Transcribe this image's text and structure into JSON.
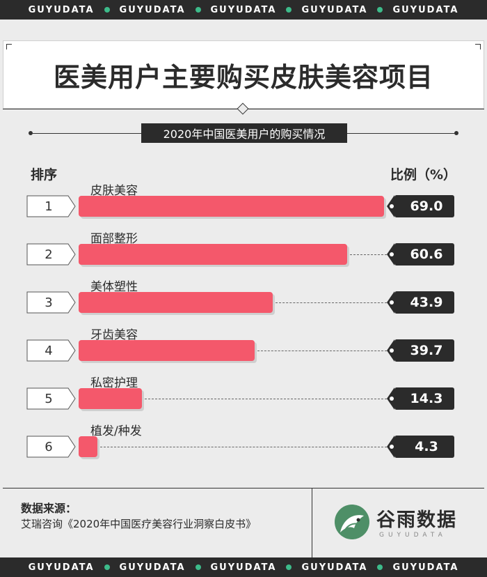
{
  "watermark": {
    "text": "GUYUDATA",
    "dot_color": "#3dbb8a"
  },
  "title": "医美用户主要购买皮肤美容项目",
  "subtitle": "2020年中国医美用户的购买情况",
  "columns": {
    "rank": "排序",
    "percent": "比例（%）"
  },
  "chart_data": {
    "type": "bar",
    "orientation": "horizontal",
    "ranks": [
      "1",
      "2",
      "3",
      "4",
      "5",
      "6"
    ],
    "categories": [
      "皮肤美容",
      "面部整形",
      "美体塑性",
      "牙齿美容",
      "私密护理",
      "植发/种发"
    ],
    "values": [
      69.0,
      60.6,
      43.9,
      39.7,
      14.3,
      4.3
    ],
    "value_labels": [
      "69.0",
      "60.6",
      "43.9",
      "39.7",
      "14.3",
      "4.3"
    ],
    "title": "医美用户主要购买皮肤美容项目",
    "subtitle": "2020年中国医美用户的购买情况",
    "ylabel": "比例（%）",
    "xlim": [
      0,
      69.0
    ],
    "bar_color": "#f4586b",
    "grid": false
  },
  "source": {
    "title": "数据来源：",
    "text": "艾瑞咨询《2020年中国医疗美容行业洞察白皮书》"
  },
  "logo": {
    "name": "谷雨数据",
    "sub": "GUYUDATA",
    "icon": "grain-rain-logo-icon",
    "color": "#4e8f67"
  }
}
